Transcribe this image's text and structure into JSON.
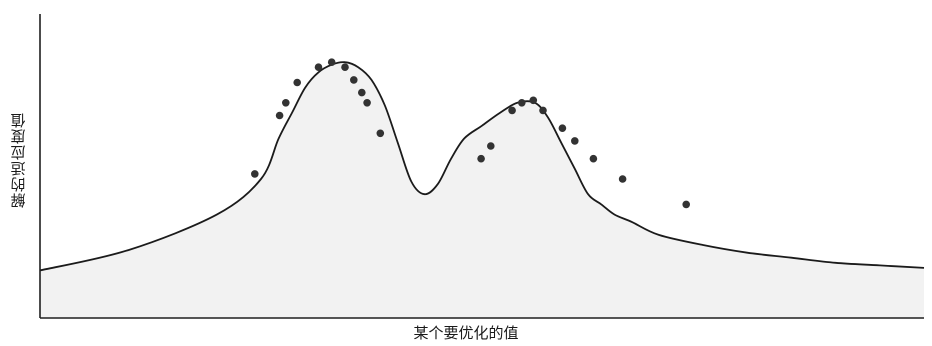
{
  "chart_data": {
    "type": "line",
    "xlabel": "某个要优化的值",
    "ylabel": "解的适应度值",
    "xlim": [
      0,
      100
    ],
    "ylim": [
      0,
      100
    ],
    "grid": false,
    "series": [
      {
        "x": [
          0,
          10,
          20,
          25,
          27,
          28.5,
          30,
          31.5,
          33,
          34.5,
          36,
          37.5,
          39,
          40.5,
          42,
          43.5,
          45,
          46.5,
          48,
          50,
          52,
          54,
          56,
          57.5,
          59,
          60.5,
          62,
          63.5,
          65,
          67,
          70,
          75,
          80,
          85,
          90,
          95,
          100
        ],
        "y": [
          14,
          22,
          36,
          50,
          66,
          76,
          86,
          92,
          95,
          96,
          94,
          89,
          79,
          64,
          49,
          44,
          48,
          58,
          66,
          71,
          76,
          80,
          80,
          74,
          64,
          54,
          44,
          40,
          36,
          33,
          28,
          24,
          21,
          19,
          17,
          16,
          15
        ]
      }
    ],
    "points": [
      {
        "x": 24.3,
        "y": 52
      },
      {
        "x": 27.1,
        "y": 75
      },
      {
        "x": 27.8,
        "y": 80
      },
      {
        "x": 29.1,
        "y": 88
      },
      {
        "x": 31.5,
        "y": 94
      },
      {
        "x": 33.0,
        "y": 96
      },
      {
        "x": 34.5,
        "y": 94
      },
      {
        "x": 35.5,
        "y": 89
      },
      {
        "x": 36.4,
        "y": 84
      },
      {
        "x": 37.0,
        "y": 80
      },
      {
        "x": 38.5,
        "y": 68
      },
      {
        "x": 49.9,
        "y": 58
      },
      {
        "x": 51.0,
        "y": 63
      },
      {
        "x": 53.4,
        "y": 77
      },
      {
        "x": 54.5,
        "y": 80
      },
      {
        "x": 55.8,
        "y": 81
      },
      {
        "x": 56.9,
        "y": 77
      },
      {
        "x": 59.1,
        "y": 70
      },
      {
        "x": 60.5,
        "y": 65
      },
      {
        "x": 62.6,
        "y": 58
      },
      {
        "x": 65.9,
        "y": 50
      },
      {
        "x": 73.1,
        "y": 40
      }
    ]
  }
}
